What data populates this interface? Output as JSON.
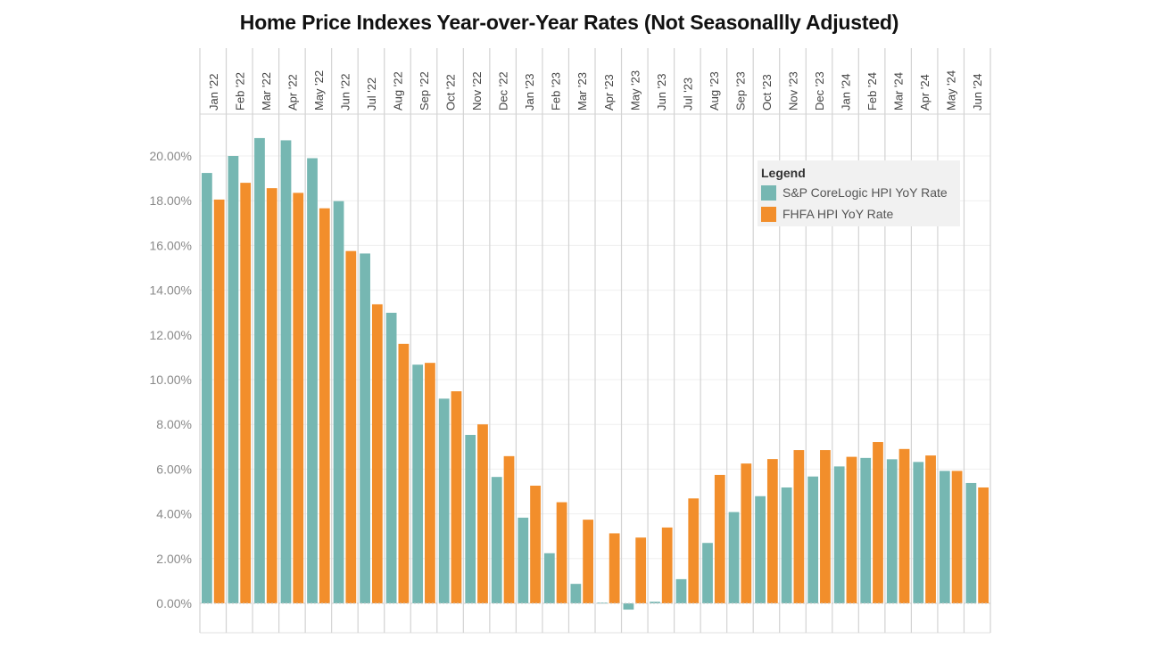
{
  "chart_data": {
    "type": "bar",
    "title": "Home Price Indexes Year-over-Year Rates (Not Seasonallly Adjusted)",
    "xlabel": "",
    "ylabel": "",
    "ylim": [
      -1.3,
      21.5
    ],
    "yticks": [
      0,
      2,
      4,
      6,
      8,
      10,
      12,
      14,
      16,
      18,
      20
    ],
    "ytick_labels": [
      "0.00%",
      "2.00%",
      "4.00%",
      "6.00%",
      "8.00%",
      "10.00%",
      "12.00%",
      "14.00%",
      "16.00%",
      "18.00%",
      "20.00%"
    ],
    "grid": true,
    "legend_position": "top-right",
    "categories": [
      "Jan '22",
      "Feb '22",
      "Mar '22",
      "Apr '22",
      "May '22",
      "Jun '22",
      "Jul '22",
      "Aug '22",
      "Sep '22",
      "Oct '22",
      "Nov '22",
      "Dec '22",
      "Jan '23",
      "Feb '23",
      "Mar '23",
      "Apr '23",
      "May '23",
      "Jun '23",
      "Jul '23",
      "Aug '23",
      "Sep '23",
      "Oct '23",
      "Nov '23",
      "Dec '23",
      "Jan '24",
      "Feb '24",
      "Mar '24",
      "Apr '24",
      "May '24",
      "Jun '24"
    ],
    "series": [
      {
        "name": "S&P CoreLogic HPI YoY Rate",
        "color": "#76b7b2",
        "values": [
          19.24,
          20.0,
          20.8,
          20.7,
          19.9,
          17.98,
          15.64,
          12.99,
          10.67,
          9.15,
          7.53,
          5.65,
          3.83,
          2.24,
          0.87,
          0.03,
          -0.28,
          0.07,
          1.08,
          2.7,
          4.08,
          4.79,
          5.18,
          5.67,
          6.12,
          6.5,
          6.44,
          6.32,
          5.92,
          5.38
        ]
      },
      {
        "name": "FHFA HPI YoY Rate",
        "color": "#f28e2b",
        "values": [
          18.05,
          18.8,
          18.56,
          18.35,
          17.66,
          15.75,
          13.37,
          11.6,
          10.75,
          9.48,
          8.0,
          6.58,
          5.26,
          4.52,
          3.74,
          3.13,
          2.94,
          3.39,
          4.69,
          5.74,
          6.25,
          6.45,
          6.85,
          6.85,
          6.55,
          7.21,
          6.9,
          6.61,
          5.92,
          5.18
        ]
      }
    ],
    "legend_title": "Legend"
  }
}
